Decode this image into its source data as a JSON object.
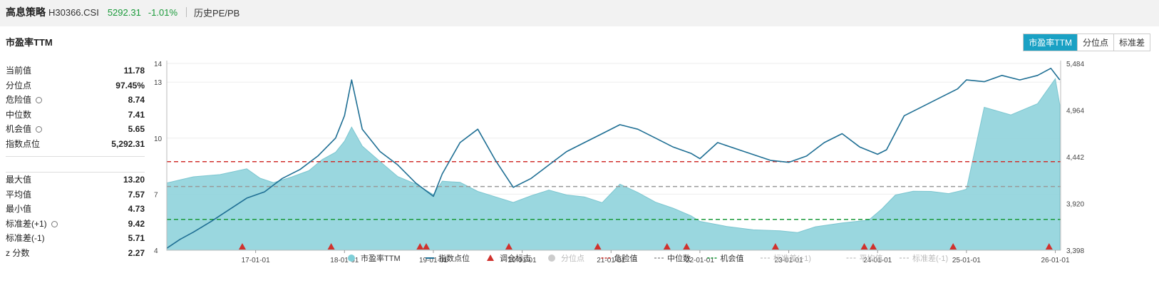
{
  "header": {
    "name": "高息策略",
    "code": "H30366.CSI",
    "price": "5292.31",
    "change": "-1.01%",
    "history_label": "历史PE/PB"
  },
  "panel": {
    "title": "市盈率TTM",
    "tabs": [
      "市盈率TTM",
      "分位点",
      "标准差"
    ],
    "active_tab": "市盈率TTM"
  },
  "stats_top": [
    {
      "label": "当前值",
      "value": "11.78",
      "gear": false
    },
    {
      "label": "分位点",
      "value": "97.45%",
      "gear": false
    },
    {
      "label": "危险值",
      "value": "8.74",
      "gear": true
    },
    {
      "label": "中位数",
      "value": "7.41",
      "gear": false
    },
    {
      "label": "机会值",
      "value": "5.65",
      "gear": true
    },
    {
      "label": "指数点位",
      "value": "5,292.31",
      "gear": false
    }
  ],
  "stats_bottom": [
    {
      "label": "最大值",
      "value": "13.20",
      "gear": false
    },
    {
      "label": "平均值",
      "value": "7.57",
      "gear": false
    },
    {
      "label": "最小值",
      "value": "4.73",
      "gear": false
    },
    {
      "label": "标准差(+1)",
      "value": "9.42",
      "gear": true
    },
    {
      "label": "标准差(-1)",
      "value": "5.71",
      "gear": false
    },
    {
      "label": "z 分数",
      "value": "2.27",
      "gear": false
    }
  ],
  "chart_data": {
    "type": "area",
    "x_ticks": [
      "17-01-01",
      "18-01-01",
      "19-01-01",
      "20-01-01",
      "21-01-01",
      "22-01-01",
      "23-01-01",
      "24-01-01",
      "25-01-01",
      "26-01-01"
    ],
    "y_left_ticks": [
      "14",
      "13",
      "10",
      "7",
      "4"
    ],
    "y_left_range": [
      4,
      14
    ],
    "y_right_ticks": [
      "5,484",
      "4,964",
      "4,442",
      "3,920",
      "3,398"
    ],
    "y_right_range": [
      3398,
      5484
    ],
    "series": [
      {
        "name": "市盈率TTM",
        "color": "#7fcfd8",
        "axis": "left",
        "x": [
          2016.0,
          2016.3,
          2016.6,
          2016.9,
          2017.05,
          2017.2,
          2017.4,
          2017.6,
          2017.75,
          2017.9,
          2018.0,
          2018.08,
          2018.2,
          2018.4,
          2018.6,
          2018.8,
          2019.0,
          2019.1,
          2019.3,
          2019.5,
          2019.7,
          2019.9,
          2020.1,
          2020.3,
          2020.5,
          2020.7,
          2020.9,
          2021.1,
          2021.3,
          2021.5,
          2021.7,
          2021.9,
          2022.0,
          2022.3,
          2022.6,
          2022.9,
          2023.1,
          2023.3,
          2023.6,
          2023.9,
          2024.05,
          2024.2,
          2024.4,
          2024.6,
          2024.8,
          2024.95,
          2025.0,
          2025.2,
          2025.5,
          2025.8,
          2026.0,
          2026.05
        ],
        "y": [
          7.6,
          7.9,
          8.1,
          8.3,
          7.9,
          7.6,
          7.9,
          8.3,
          8.8,
          9.3,
          9.8,
          10.6,
          9.6,
          8.7,
          8.0,
          7.5,
          7.0,
          7.7,
          7.6,
          7.2,
          6.8,
          6.6,
          6.9,
          7.2,
          7.0,
          6.8,
          6.6,
          7.5,
          7.1,
          6.6,
          6.2,
          5.9,
          5.5,
          5.3,
          5.1,
          5.0,
          5.0,
          5.2,
          5.5,
          5.6,
          6.2,
          7.0,
          7.1,
          7.2,
          7.0,
          7.2,
          7.3,
          11.6,
          11.3,
          11.8,
          13.2,
          11.8
        ]
      },
      {
        "name": "指数点位",
        "color": "#1f6f94",
        "axis": "right",
        "x": [
          2016.0,
          2016.15,
          2016.3,
          2016.5,
          2016.7,
          2016.9,
          2017.1,
          2017.3,
          2017.5,
          2017.7,
          2017.9,
          2018.0,
          2018.08,
          2018.2,
          2018.4,
          2018.6,
          2018.8,
          2019.0,
          2019.1,
          2019.3,
          2019.5,
          2019.7,
          2019.9,
          2020.1,
          2020.3,
          2020.5,
          2020.7,
          2020.9,
          2021.1,
          2021.3,
          2021.5,
          2021.7,
          2021.9,
          2022.0,
          2022.2,
          2022.5,
          2022.8,
          2023.0,
          2023.2,
          2023.4,
          2023.6,
          2023.8,
          2024.0,
          2024.1,
          2024.3,
          2024.5,
          2024.7,
          2024.9,
          2025.0,
          2025.2,
          2025.4,
          2025.6,
          2025.8,
          2025.95,
          2026.05
        ],
        "y": [
          3420,
          3520,
          3600,
          3720,
          3850,
          3980,
          4050,
          4200,
          4300,
          4450,
          4650,
          4900,
          5300,
          4750,
          4500,
          4350,
          4150,
          4000,
          4250,
          4600,
          4750,
          4400,
          4100,
          4200,
          4350,
          4500,
          4600,
          4700,
          4800,
          4750,
          4650,
          4550,
          4480,
          4420,
          4600,
          4500,
          4400,
          4380,
          4450,
          4600,
          4700,
          4550,
          4470,
          4520,
          4900,
          5000,
          5100,
          5200,
          5300,
          5280,
          5350,
          5300,
          5350,
          5430,
          5300
        ]
      }
    ],
    "reference_lines": [
      {
        "name": "危险值",
        "value": 8.74,
        "color": "#d0312d"
      },
      {
        "name": "中位数",
        "value": 7.41,
        "color": "#999999"
      },
      {
        "name": "机会值",
        "value": 5.65,
        "color": "#1a9a3a"
      }
    ],
    "markers": {
      "name": "调仓标志",
      "color": "#d0312d",
      "x": [
        2016.85,
        2017.85,
        2018.85,
        2018.92,
        2019.85,
        2020.85,
        2021.63,
        2021.85,
        2022.85,
        2023.85,
        2023.95,
        2024.85,
        2025.93
      ]
    },
    "legend": [
      {
        "name": "市盈率TTM",
        "shape": "dot",
        "color": "#7fcfd8",
        "active": true
      },
      {
        "name": "指数点位",
        "shape": "line",
        "color": "#1f6f94",
        "active": true
      },
      {
        "name": "调仓标志",
        "shape": "triangle",
        "color": "#d0312d",
        "active": true
      },
      {
        "name": "分位点",
        "shape": "dot",
        "color": "#cccccc",
        "active": false
      },
      {
        "name": "危险值",
        "shape": "dash",
        "color": "#d0312d",
        "active": true
      },
      {
        "name": "中位数",
        "shape": "dash",
        "color": "#999999",
        "active": true
      },
      {
        "name": "机会值",
        "shape": "dash",
        "color": "#1a9a3a",
        "active": true
      },
      {
        "name": "标准差(+1)",
        "shape": "dash",
        "color": "#cccccc",
        "active": false
      },
      {
        "name": "平均值",
        "shape": "dash",
        "color": "#cccccc",
        "active": false
      },
      {
        "name": "标准差(-1)",
        "shape": "dash",
        "color": "#cccccc",
        "active": false
      }
    ]
  }
}
